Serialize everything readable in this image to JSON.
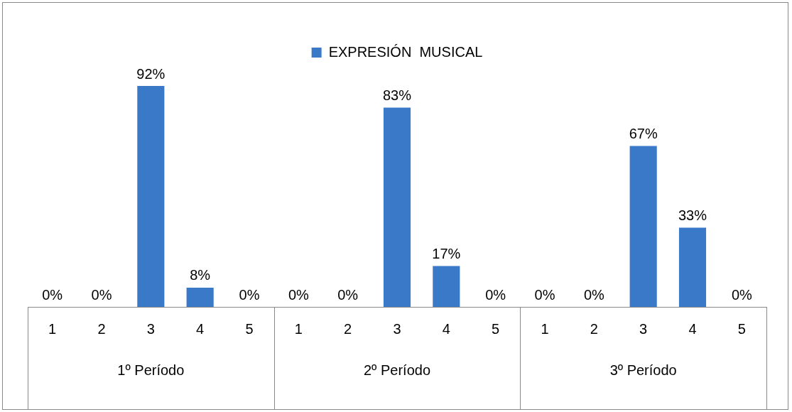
{
  "chart_data": {
    "type": "bar",
    "categories": [
      "1",
      "2",
      "3",
      "4",
      "5",
      "1",
      "2",
      "3",
      "4",
      "5",
      "1",
      "2",
      "3",
      "4",
      "5"
    ],
    "series": [
      {
        "name": "EXPRESIÓN  MUSICAL",
        "color": "#3a78c8",
        "values": [
          0,
          0,
          92,
          8,
          0,
          0,
          0,
          83,
          17,
          0,
          0,
          0,
          67,
          33,
          0
        ],
        "value_labels": [
          "0%",
          "0%",
          "92%",
          "8%",
          "0%",
          "0%",
          "0%",
          "83%",
          "17%",
          "0%",
          "0%",
          "0%",
          "67%",
          "33%",
          "0%"
        ]
      }
    ],
    "legend": "top",
    "grid": false,
    "annotations": [
      "1º Período",
      "2º Período",
      "3º Período"
    ]
  }
}
